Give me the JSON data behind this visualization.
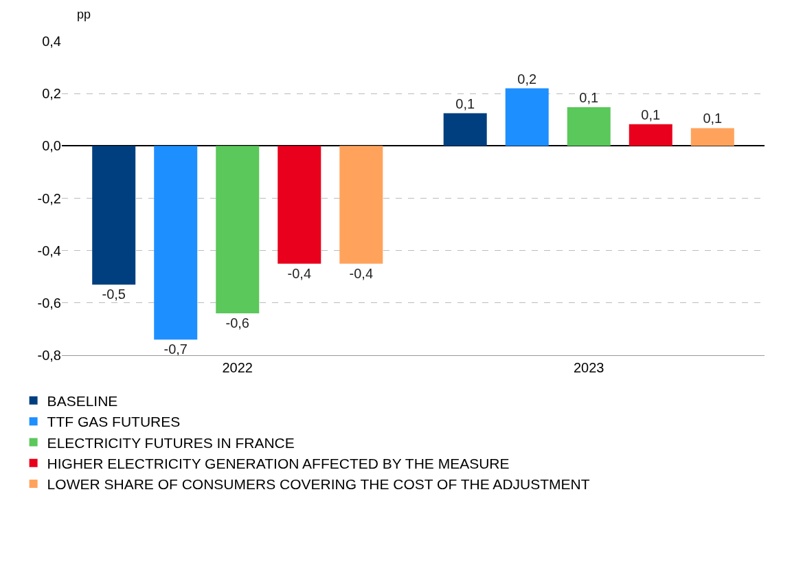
{
  "chart_data": {
    "type": "bar",
    "ylabel": "pp",
    "categories": [
      "2022",
      "2023"
    ],
    "series": [
      {
        "name": "BASELINE",
        "color": "#003f7f",
        "values": [
          -0.53,
          0.125
        ],
        "value_labels": [
          "-0,5",
          "0,1"
        ]
      },
      {
        "name": "TTF GAS FUTURES",
        "color": "#1e8fff",
        "values": [
          -0.74,
          0.22
        ],
        "value_labels": [
          "-0,7",
          "0,2"
        ]
      },
      {
        "name": "ELECTRICITY FUTURES IN FRANCE",
        "color": "#5ac85a",
        "values": [
          -0.64,
          0.148
        ],
        "value_labels": [
          "-0,6",
          "0,1"
        ]
      },
      {
        "name": "HIGHER ELECTRICITY GENERATION AFFECTED BY THE MEASURE",
        "color": "#e8001c",
        "values": [
          -0.45,
          0.083
        ],
        "value_labels": [
          "-0,4",
          "0,1"
        ]
      },
      {
        "name": "LOWER SHARE OF CONSUMERS COVERING THE COST OF THE ADJUSTMENT",
        "color": "#ffa35c",
        "values": [
          -0.45,
          0.068
        ],
        "value_labels": [
          "-0,4",
          "0,1"
        ]
      }
    ],
    "ylim": [
      -0.8,
      0.4
    ],
    "yticks": [
      {
        "value": -0.8,
        "label": "-0,8"
      },
      {
        "value": -0.6,
        "label": "-0,6"
      },
      {
        "value": -0.4,
        "label": "-0,4"
      },
      {
        "value": -0.2,
        "label": "-0,2"
      },
      {
        "value": 0,
        "label": "0,0"
      },
      {
        "value": 0.2,
        "label": "0,2"
      },
      {
        "value": 0.4,
        "label": "0,4"
      }
    ],
    "grid": "y",
    "legend": "bottom"
  }
}
